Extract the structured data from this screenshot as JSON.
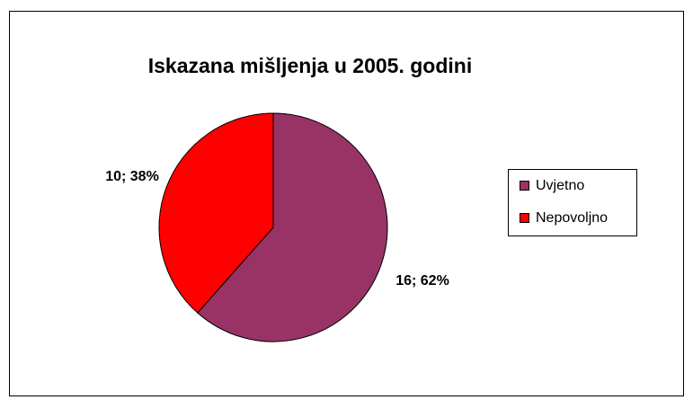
{
  "chart_data": {
    "type": "pie",
    "title": "Iskazana mišljenja u 2005. godini",
    "categories": [
      "Uvjetno",
      "Nepovoljno"
    ],
    "values": [
      16,
      10
    ],
    "value_labels": [
      "16; 62%",
      "10; 38%"
    ],
    "colors": [
      "#993366",
      "#ff0000"
    ],
    "legend": "right"
  }
}
